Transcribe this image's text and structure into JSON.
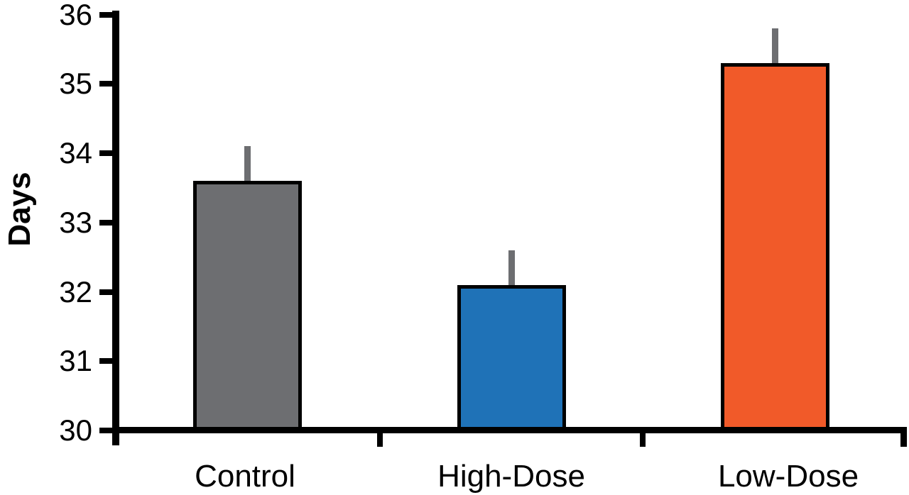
{
  "chart_data": {
    "type": "bar",
    "title": "",
    "xlabel": "",
    "ylabel": "Days",
    "categories": [
      "Control",
      "High-Dose",
      "Low-Dose"
    ],
    "values": [
      33.6,
      32.1,
      35.3
    ],
    "errors": [
      0.5,
      0.5,
      0.5
    ],
    "error_direction": "upper-only",
    "ylim": [
      30,
      36
    ],
    "yticks": [
      30,
      31,
      32,
      33,
      34,
      35,
      36
    ],
    "grid": false,
    "legend_position": "none",
    "bar_colors": [
      "#6D6E71",
      "#1F72B7",
      "#F15A29"
    ],
    "bar_border_color": "#000000",
    "error_bar_color": "#6D6E71",
    "axis_color": "#000000",
    "text_color": "#000000",
    "background_color": "#FFFFFF"
  }
}
